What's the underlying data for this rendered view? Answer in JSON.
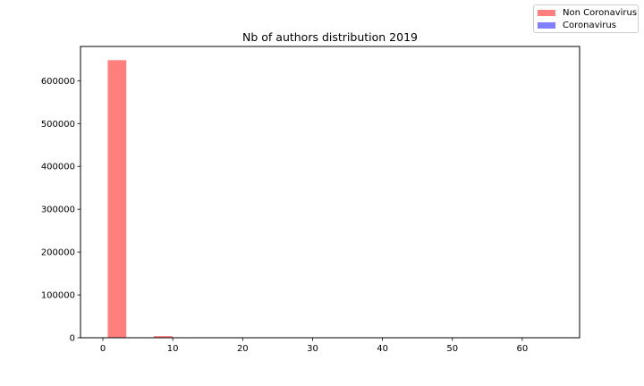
{
  "chart_data": {
    "type": "bar",
    "title": "Nb of authors distribution 2019",
    "xlabel": "",
    "ylabel": "",
    "xlim": [
      -3.2,
      68.2
    ],
    "ylim": [
      0,
      680000
    ],
    "xticks": [
      0,
      10,
      20,
      30,
      40,
      50,
      60
    ],
    "yticks": [
      0,
      100000,
      200000,
      300000,
      400000,
      500000,
      600000
    ],
    "grid": false,
    "legend_position": "top-right",
    "bin_width": 2.65,
    "series": [
      {
        "name": "Non Coronavirus",
        "color": "#ff0000",
        "opacity": 0.5,
        "bins": [
          {
            "x": 0.7,
            "value": 648000
          },
          {
            "x": 7.3,
            "value": 4000
          },
          {
            "x": 10.0,
            "value": 500
          }
        ]
      },
      {
        "name": "Coronavirus",
        "color": "#0000ff",
        "opacity": 0.5,
        "bins": []
      }
    ]
  }
}
